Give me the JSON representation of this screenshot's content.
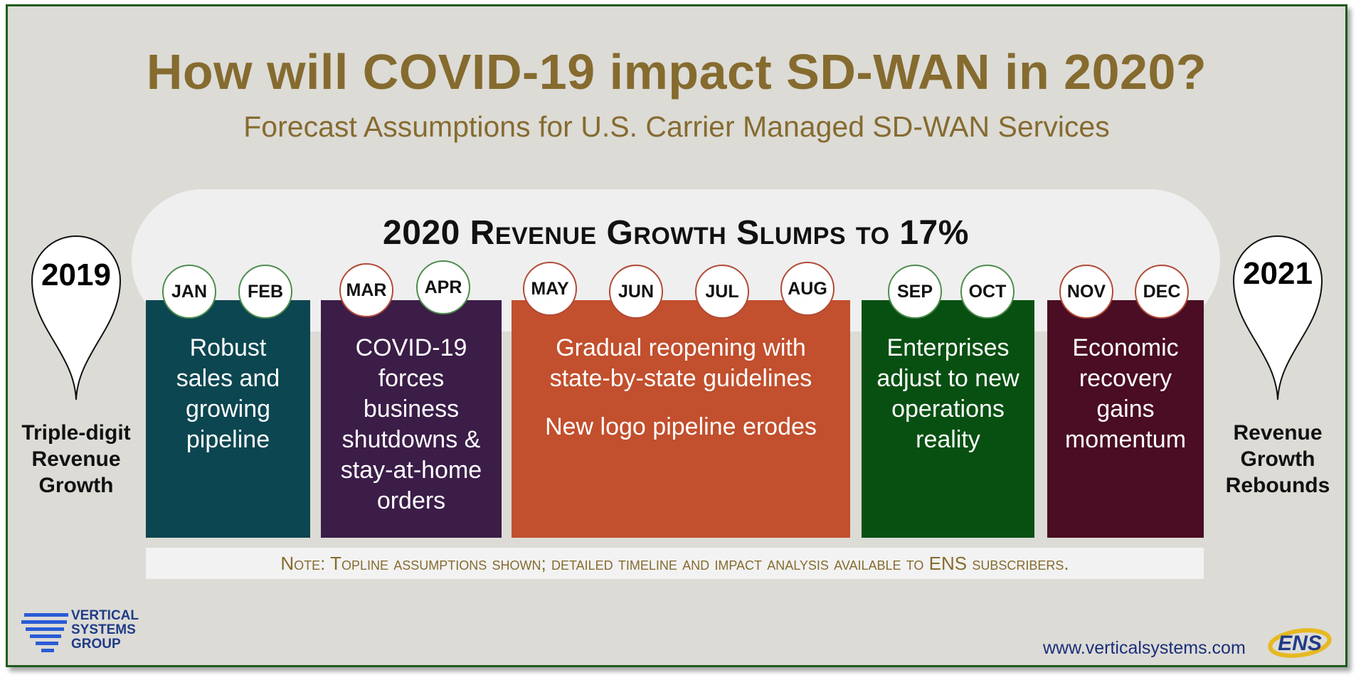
{
  "title": "How will COVID-19 impact SD-WAN in 2020?",
  "subtitle": "Forecast Assumptions for U.S. Carrier Managed SD-WAN Services",
  "banner": "2020 Revenue Growth Slumps to 17%",
  "left_marker": {
    "year": "2019",
    "caption": [
      "Triple-digit",
      "Revenue",
      "Growth"
    ]
  },
  "right_marker": {
    "year": "2021",
    "caption": [
      "Revenue",
      "Growth",
      "Rebounds"
    ]
  },
  "months": [
    "JAN",
    "FEB",
    "MAR",
    "APR",
    "MAY",
    "JUN",
    "JUL",
    "AUG",
    "SEP",
    "OCT",
    "NOV",
    "DEC"
  ],
  "phases": [
    {
      "lines": [
        "Robust",
        "sales and",
        "growing",
        "pipeline"
      ],
      "color": "#0c4651"
    },
    {
      "lines": [
        "COVID-19",
        "forces",
        "business",
        "shutdowns &",
        "stay-at-home",
        "orders"
      ],
      "color": "#3b1d48"
    },
    {
      "lines": [
        "Gradual reopening with",
        "state-by-state guidelines"
      ],
      "extra": "New logo pipeline erodes",
      "color": "#c24f2d"
    },
    {
      "lines": [
        "Enterprises",
        "adjust to new",
        "operations",
        "reality"
      ],
      "color": "#085011"
    },
    {
      "lines": [
        "Economic",
        "recovery",
        "gains",
        "momentum"
      ],
      "color": "#4a0d23"
    }
  ],
  "note": "Note: Topline assumptions shown; detailed timeline and impact analysis available to ENS subscribers.",
  "logo_vsg": [
    "VERTICAL",
    "SYSTEMS",
    "GROUP"
  ],
  "website": "www.verticalsystems.com",
  "logo_ens": "ENS",
  "colors": {
    "title": "#866b2f",
    "frame": "#1d5b1d",
    "logo_blue": "#1f3b88"
  }
}
